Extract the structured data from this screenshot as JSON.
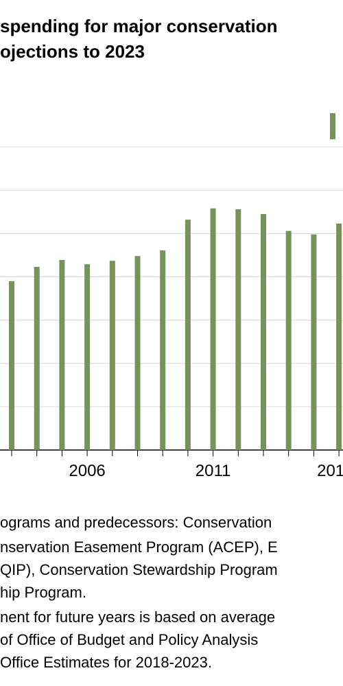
{
  "chart_data": {
    "type": "bar",
    "title": [
      "spending for major conservation",
      "ojections to 2023"
    ],
    "categories": [
      null,
      null,
      null,
      "2006",
      null,
      null,
      null,
      null,
      "2011",
      null,
      null,
      null,
      null,
      "201"
    ],
    "values": [
      3.9,
      4.23,
      4.39,
      4.29,
      4.37,
      4.48,
      4.61,
      5.32,
      5.58,
      5.56,
      5.45,
      5.06,
      4.98,
      5.23
    ],
    "color": "#76935a",
    "ylim": [
      0,
      8
    ],
    "yticks": [
      0,
      1,
      2,
      3,
      4,
      5,
      6,
      7
    ],
    "grid": true,
    "notes": [
      "ograms and predecessors: Conservation",
      "nservation Easement Program (ACEP), E",
      "QIP), Conservation Stewardship Program",
      "hip Program.",
      "nent for future years is based on average",
      " of Office of Budget and Policy Analysis",
      "Office Estimates for 2018-2023."
    ]
  }
}
